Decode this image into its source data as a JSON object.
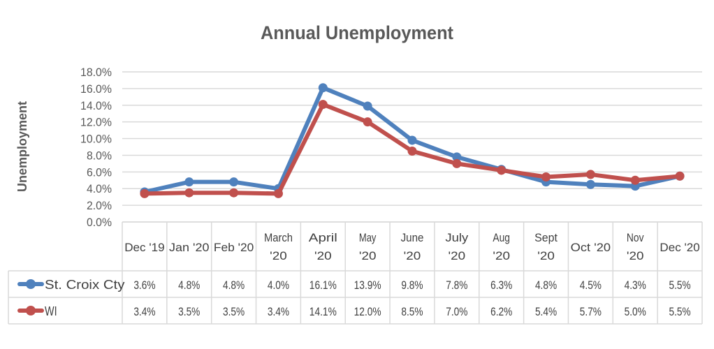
{
  "chart_data": {
    "type": "line",
    "title": "Annual Unemployment",
    "ylabel": "Unemployment",
    "xlabel": "",
    "ylim": [
      0,
      18
    ],
    "yticks": [
      "0.0%",
      "2.0%",
      "4.0%",
      "6.0%",
      "8.0%",
      "10.0%",
      "12.0%",
      "14.0%",
      "16.0%",
      "18.0%"
    ],
    "grid": true,
    "legend": "data-table-left",
    "categories": [
      [
        "Dec '19"
      ],
      [
        "Jan '20"
      ],
      [
        "Feb '20"
      ],
      [
        "March",
        "'20"
      ],
      [
        "April",
        "'20"
      ],
      [
        "May",
        "'20"
      ],
      [
        "June",
        "'20"
      ],
      [
        "July",
        "'20"
      ],
      [
        "Aug",
        "'20"
      ],
      [
        "Sept",
        "'20"
      ],
      [
        "Oct '20"
      ],
      [
        "Nov",
        "'20"
      ],
      [
        "Dec '20"
      ]
    ],
    "series": [
      {
        "name": "St. Croix Cty",
        "color": "#4F81BD",
        "values": [
          3.6,
          4.8,
          4.8,
          4.0,
          16.1,
          13.9,
          9.8,
          7.8,
          6.3,
          4.8,
          4.5,
          4.3,
          5.5
        ],
        "labels": [
          "3.6%",
          "4.8%",
          "4.8%",
          "4.0%",
          "16.1%",
          "13.9%",
          "9.8%",
          "7.8%",
          "6.3%",
          "4.8%",
          "4.5%",
          "4.3%",
          "5.5%"
        ]
      },
      {
        "name": "WI",
        "color": "#C0504D",
        "values": [
          3.4,
          3.5,
          3.5,
          3.4,
          14.1,
          12.0,
          8.5,
          7.0,
          6.2,
          5.4,
          5.7,
          5.0,
          5.5
        ],
        "labels": [
          "3.4%",
          "3.5%",
          "3.5%",
          "3.4%",
          "14.1%",
          "12.0%",
          "8.5%",
          "7.0%",
          "6.2%",
          "5.4%",
          "5.7%",
          "5.0%",
          "5.5%"
        ]
      }
    ]
  }
}
